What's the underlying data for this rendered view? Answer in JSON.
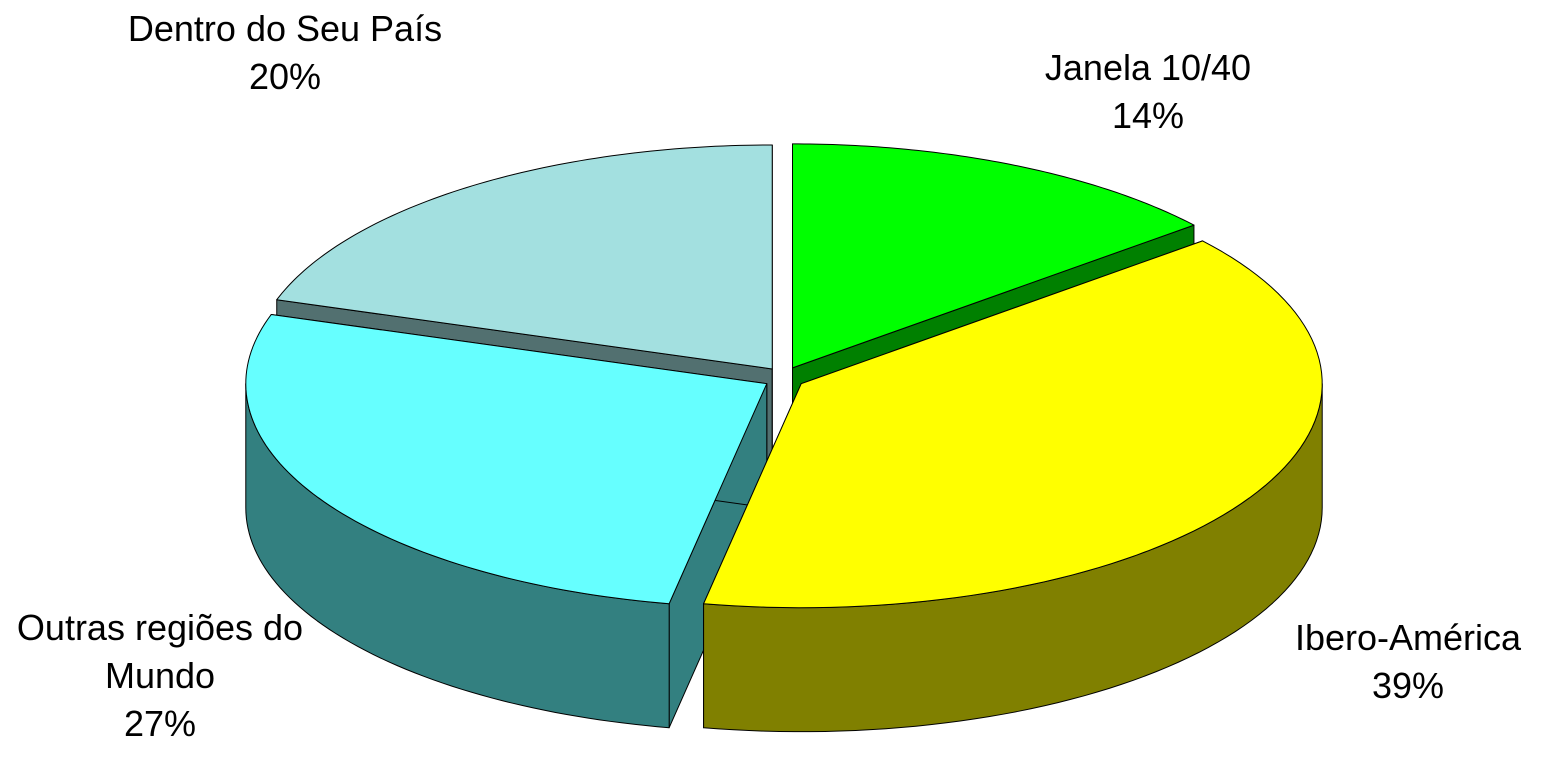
{
  "chart_data": {
    "type": "pie3d",
    "categories": [
      "Janela 10/40",
      "Ibero-América",
      "Outras regiões do Mundo",
      "Dentro do Seu País"
    ],
    "values": [
      14,
      39,
      27,
      20
    ],
    "value_labels": [
      "14%",
      "39%",
      "27%",
      "20%"
    ],
    "colors": [
      "#00ff00",
      "#ffff00",
      "#66ffff",
      "#a3e0e0"
    ],
    "side_colors": [
      "#008000",
      "#808000",
      "#338080",
      "#527070"
    ]
  }
}
